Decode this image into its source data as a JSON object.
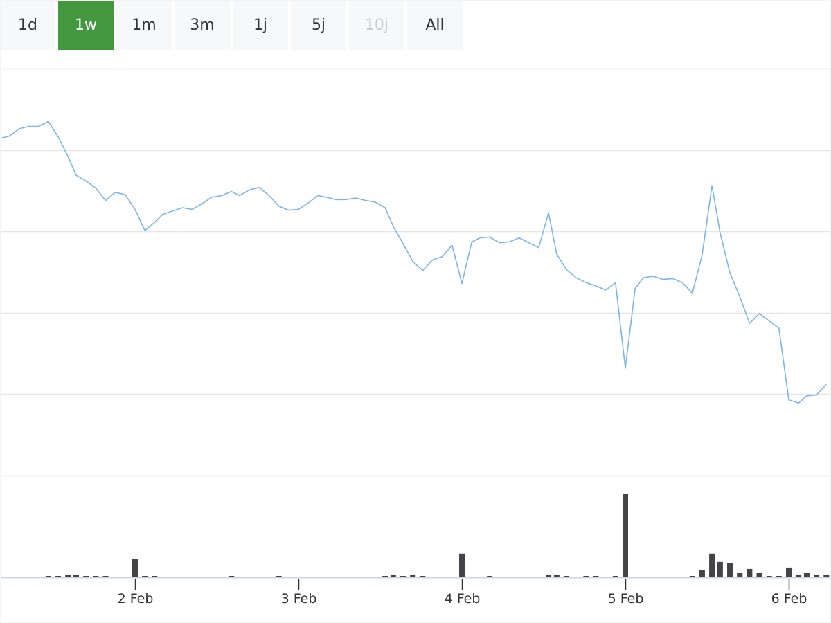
{
  "range_selector": {
    "buttons": [
      {
        "label": "1d",
        "state": "normal"
      },
      {
        "label": "1w",
        "state": "active"
      },
      {
        "label": "1m",
        "state": "normal"
      },
      {
        "label": "3m",
        "state": "normal"
      },
      {
        "label": "1j",
        "state": "normal"
      },
      {
        "label": "5j",
        "state": "normal"
      },
      {
        "label": "10j",
        "state": "disabled"
      },
      {
        "label": "All",
        "state": "normal"
      }
    ],
    "active_color": "#43983f"
  },
  "chart_data": {
    "type": "line",
    "title": "",
    "xlabel": "",
    "ylabel": "",
    "grid": true,
    "y_tick_labels_shown": false,
    "xticks": [
      2,
      3,
      4,
      5,
      6
    ],
    "xtick_labels": [
      "2 Feb",
      "3 Feb",
      "4 Feb",
      "5 Feb",
      "6 Feb"
    ],
    "xlim": [
      1.17,
      6.23
    ],
    "ylim": [
      0,
      5
    ],
    "line_color": "#7cb5ec",
    "x": [
      1.17,
      1.23,
      1.29,
      1.35,
      1.41,
      1.47,
      1.53,
      1.59,
      1.64,
      1.7,
      1.76,
      1.82,
      1.88,
      1.94,
      2.0,
      2.06,
      2.12,
      2.17,
      2.23,
      2.29,
      2.35,
      2.41,
      2.47,
      2.53,
      2.59,
      2.64,
      2.7,
      2.76,
      2.82,
      2.88,
      2.94,
      3.0,
      3.06,
      3.12,
      3.17,
      3.23,
      3.29,
      3.35,
      3.41,
      3.47,
      3.53,
      3.58,
      3.64,
      3.7,
      3.76,
      3.82,
      3.88,
      3.94,
      4.0,
      4.06,
      4.11,
      4.17,
      4.23,
      4.29,
      4.35,
      4.41,
      4.47,
      4.53,
      4.58,
      4.64,
      4.7,
      4.76,
      4.82,
      4.88,
      4.94,
      5.0,
      5.06,
      5.11,
      5.17,
      5.23,
      5.29,
      5.35,
      5.41,
      5.47,
      5.53,
      5.58,
      5.64,
      5.7,
      5.76,
      5.82,
      5.88,
      5.94,
      6.0,
      6.06,
      6.11,
      6.17,
      6.23
    ],
    "price": [
      4.14,
      4.17,
      4.26,
      4.29,
      4.29,
      4.35,
      4.16,
      3.92,
      3.69,
      3.62,
      3.53,
      3.38,
      3.48,
      3.45,
      3.27,
      3.01,
      3.11,
      3.21,
      3.25,
      3.29,
      3.27,
      3.34,
      3.42,
      3.44,
      3.49,
      3.44,
      3.51,
      3.54,
      3.44,
      3.31,
      3.26,
      3.27,
      3.35,
      3.44,
      3.42,
      3.39,
      3.39,
      3.41,
      3.38,
      3.36,
      3.29,
      3.06,
      2.85,
      2.63,
      2.52,
      2.65,
      2.69,
      2.83,
      2.36,
      2.87,
      2.92,
      2.93,
      2.86,
      2.87,
      2.92,
      2.86,
      2.8,
      3.23,
      2.72,
      2.53,
      2.43,
      2.37,
      2.33,
      2.28,
      2.37,
      1.32,
      2.3,
      2.43,
      2.45,
      2.41,
      2.42,
      2.37,
      2.24,
      2.71,
      3.56,
      2.98,
      2.49,
      2.2,
      1.87,
      1.99,
      1.9,
      1.81,
      0.93,
      0.89,
      0.98,
      0.99,
      1.12
    ],
    "volume_color": "#434348",
    "volume_ylim": [
      0,
      73
    ],
    "volume": [
      0,
      0,
      0,
      0,
      0,
      1,
      1,
      2,
      2,
      1,
      1,
      1,
      0,
      0,
      13,
      1,
      1,
      0,
      0,
      0,
      0,
      0,
      0,
      0,
      1,
      0,
      0,
      0,
      0,
      1,
      0,
      0,
      0,
      0,
      0,
      0,
      0,
      0,
      0,
      0,
      1,
      2,
      1,
      2,
      1,
      0,
      0,
      0,
      17,
      0,
      0,
      1,
      0,
      0,
      0,
      0,
      0,
      2,
      2,
      1,
      0,
      1,
      1,
      0,
      1,
      60,
      0,
      0,
      0,
      0,
      0,
      0,
      1,
      5,
      17,
      11,
      10,
      3,
      6,
      3,
      1,
      1,
      7,
      2,
      3,
      2,
      2
    ]
  }
}
